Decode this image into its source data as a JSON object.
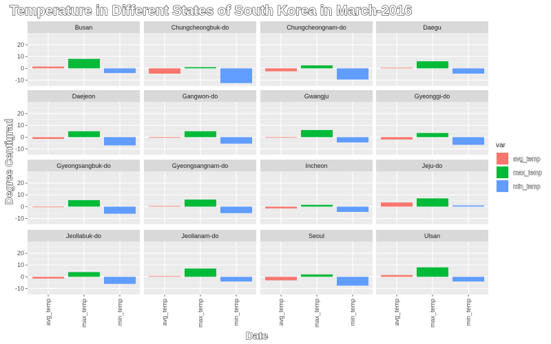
{
  "chart_data": {
    "type": "bar",
    "title": "Temperature in Different States of South Korea in March-2016",
    "xlabel": "Date",
    "ylabel": "Degree Centigrad",
    "categories": [
      "avg_temp",
      "max_temp",
      "min_temp"
    ],
    "ylim": [
      -15,
      30
    ],
    "yticks": [
      -10,
      0,
      10,
      20
    ],
    "grid": true,
    "legend": {
      "title": "var",
      "position": "right",
      "entries": [
        "avg_temp",
        "max_temp",
        "min_temp"
      ]
    },
    "colors": {
      "avg_temp": "#F8766D",
      "max_temp": "#00BA38",
      "min_temp": "#619CFF"
    },
    "panels": [
      {
        "name": "Busan",
        "values": [
          1.5,
          8,
          -4
        ]
      },
      {
        "name": "Chungcheongbuk-do",
        "values": [
          -4.5,
          1,
          -12.5
        ]
      },
      {
        "name": "Chungcheongnam-do",
        "values": [
          -2.5,
          2.5,
          -9.5
        ]
      },
      {
        "name": "Daegu",
        "values": [
          0.5,
          6,
          -4.5
        ]
      },
      {
        "name": "Daejeon",
        "values": [
          -1.5,
          5,
          -7
        ]
      },
      {
        "name": "Gangwon-do",
        "values": [
          -0.5,
          5,
          -5.5
        ]
      },
      {
        "name": "Gwangju",
        "values": [
          -0.3,
          6,
          -4.5
        ]
      },
      {
        "name": "Gyeonggi-do",
        "values": [
          -2,
          3.5,
          -6.5
        ]
      },
      {
        "name": "Gyeongsangbuk-do",
        "values": [
          0,
          5.5,
          -6
        ]
      },
      {
        "name": "Gyeongsangnam-do",
        "values": [
          0.5,
          6,
          -5.5
        ]
      },
      {
        "name": "Incheon",
        "values": [
          -1.5,
          1.5,
          -4.5
        ]
      },
      {
        "name": "Jeju-do",
        "values": [
          3.5,
          7,
          1
        ]
      },
      {
        "name": "Jeollabuk-do",
        "values": [
          -1.5,
          4,
          -6
        ]
      },
      {
        "name": "Jeollanam-do",
        "values": [
          0.5,
          7,
          -4
        ]
      },
      {
        "name": "Seoul",
        "values": [
          -3,
          2,
          -7.5
        ]
      },
      {
        "name": "Ulsan",
        "values": [
          1.5,
          8,
          -4
        ]
      }
    ]
  }
}
